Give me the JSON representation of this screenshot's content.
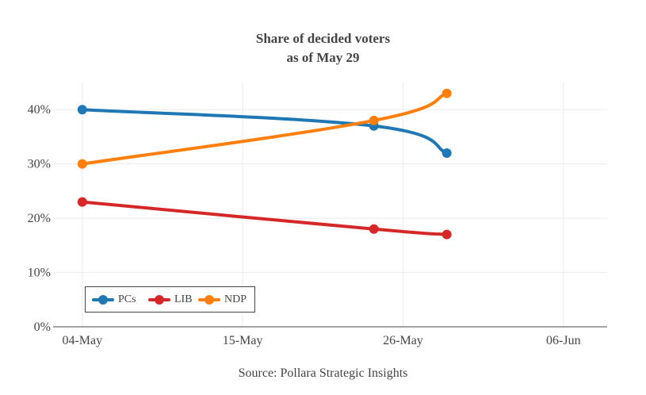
{
  "chart_data": {
    "type": "line",
    "title": "Share of decided voters",
    "subtitle": "as of May 29",
    "source": "Source: Pollara Strategic Insights",
    "x_ticks": [
      "04-May",
      "15-May",
      "26-May",
      "06-Jun"
    ],
    "y_ticks": [
      "0%",
      "10%",
      "20%",
      "30%",
      "40%"
    ],
    "x_dates": [
      "2015-05-04",
      "2015-05-24",
      "2015-05-29"
    ],
    "xlim": [
      "2015-05-02",
      "2015-06-09"
    ],
    "ylim": [
      0,
      45
    ],
    "grid": true,
    "legend_position": "bottom-left",
    "series": [
      {
        "name": "PCs",
        "color": "#1f77b4",
        "values": [
          40,
          37,
          32
        ]
      },
      {
        "name": "LIB",
        "color": "#d62728",
        "values": [
          23,
          18,
          17
        ]
      },
      {
        "name": "NDP",
        "color": "#ff7f0e",
        "values": [
          30,
          38,
          43
        ]
      }
    ]
  }
}
